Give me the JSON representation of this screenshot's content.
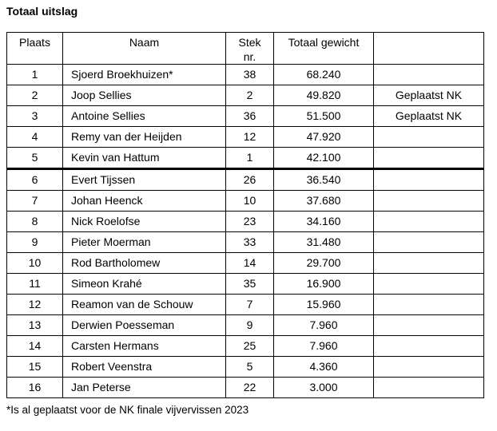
{
  "title": "Totaal uitslag",
  "footnote": "*Is al geplaatst voor de NK finale vijvervissen 2023",
  "table": {
    "headers": {
      "plaats": "Plaats",
      "naam": "Naam",
      "stek_line1": "Stek",
      "stek_line2": "nr.",
      "gewicht": "Totaal gewicht",
      "extra": ""
    },
    "divider_after_row": 5,
    "rows": [
      {
        "plaats": "1",
        "naam": "Sjoerd Broekhuizen*",
        "stek": "38",
        "gewicht": "68.240",
        "opmerking": ""
      },
      {
        "plaats": "2",
        "naam": "Joop Sellies",
        "stek": "2",
        "gewicht": "49.820",
        "opmerking": "Geplaatst NK"
      },
      {
        "plaats": "3",
        "naam": "Antoine Sellies",
        "stek": "36",
        "gewicht": "51.500",
        "opmerking": "Geplaatst NK"
      },
      {
        "plaats": "4",
        "naam": "Remy van der Heijden",
        "stek": "12",
        "gewicht": "47.920",
        "opmerking": ""
      },
      {
        "plaats": "5",
        "naam": "Kevin van Hattum",
        "stek": "1",
        "gewicht": "42.100",
        "opmerking": ""
      },
      {
        "plaats": "6",
        "naam": "Evert Tijssen",
        "stek": "26",
        "gewicht": "36.540",
        "opmerking": ""
      },
      {
        "plaats": "7",
        "naam": "Johan Heenck",
        "stek": "10",
        "gewicht": "37.680",
        "opmerking": ""
      },
      {
        "plaats": "8",
        "naam": "Nick Roelofse",
        "stek": "23",
        "gewicht": "34.160",
        "opmerking": ""
      },
      {
        "plaats": "9",
        "naam": "Pieter Moerman",
        "stek": "33",
        "gewicht": "31.480",
        "opmerking": ""
      },
      {
        "plaats": "10",
        "naam": "Rod Bartholomew",
        "stek": "14",
        "gewicht": "29.700",
        "opmerking": ""
      },
      {
        "plaats": "11",
        "naam": "Simeon Krahé",
        "stek": "35",
        "gewicht": "16.900",
        "opmerking": ""
      },
      {
        "plaats": "12",
        "naam": "Reamon van de Schouw",
        "stek": "7",
        "gewicht": "15.960",
        "opmerking": ""
      },
      {
        "plaats": "13",
        "naam": "Derwien Poesseman",
        "stek": "9",
        "gewicht": "7.960",
        "opmerking": ""
      },
      {
        "plaats": "14",
        "naam": "Carsten Hermans",
        "stek": "25",
        "gewicht": "7.960",
        "opmerking": ""
      },
      {
        "plaats": "15",
        "naam": "Robert Veenstra",
        "stek": "5",
        "gewicht": "4.360",
        "opmerking": ""
      },
      {
        "plaats": "16",
        "naam": "Jan Peterse",
        "stek": "22",
        "gewicht": "3.000",
        "opmerking": ""
      }
    ]
  }
}
